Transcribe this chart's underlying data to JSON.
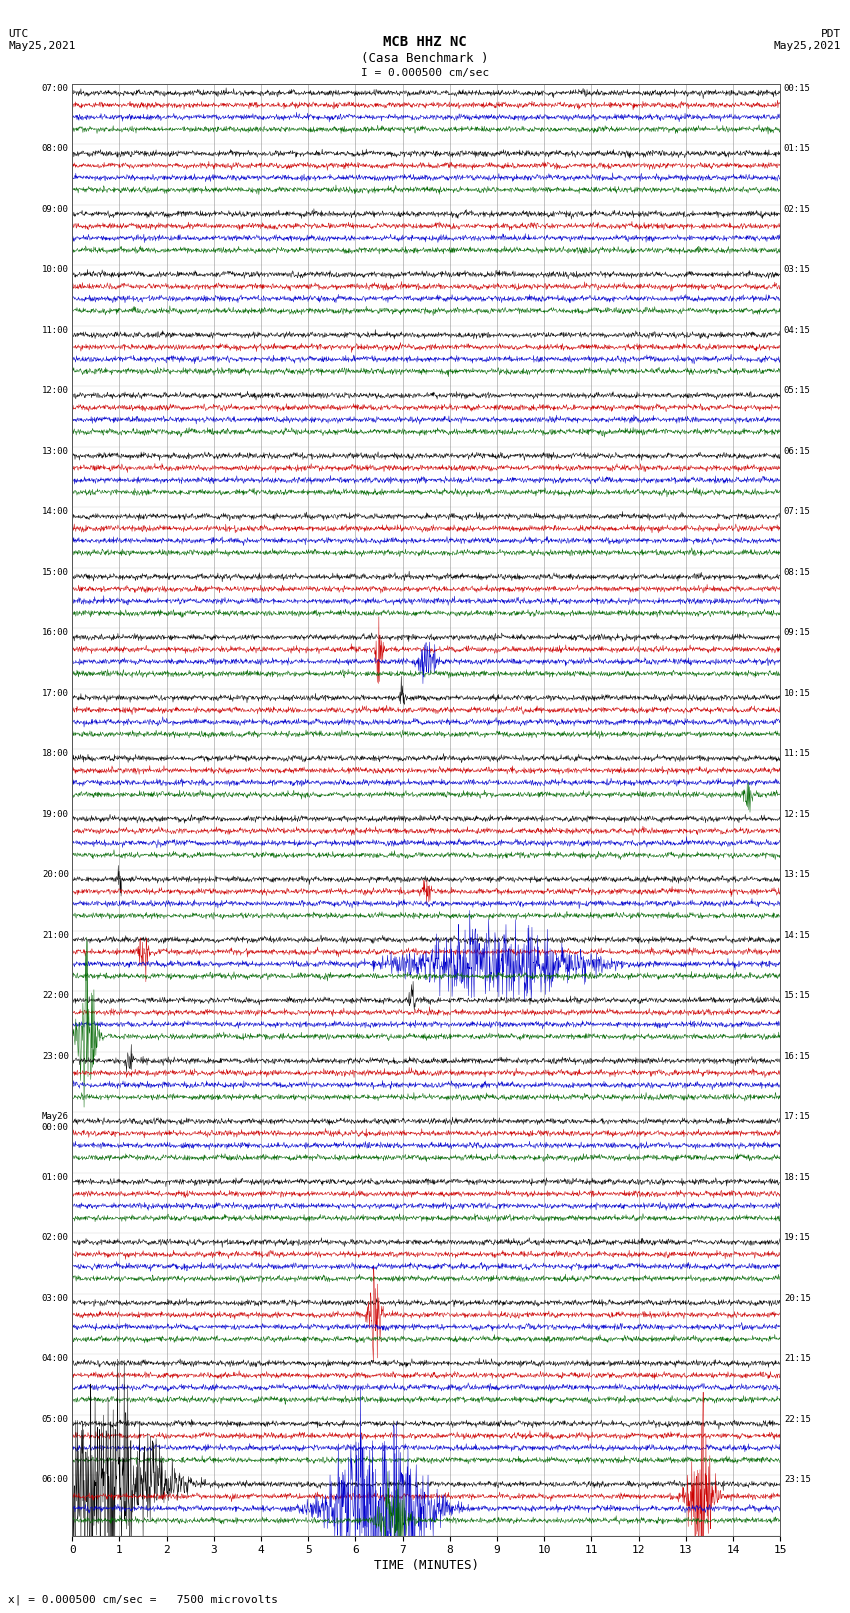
{
  "title_line1": "MCB HHZ NC",
  "title_line2": "(Casa Benchmark )",
  "scale_label": "I = 0.000500 cm/sec",
  "utc_label": "UTC\nMay25,2021",
  "pdt_label": "PDT\nMay25,2021",
  "bottom_label": "x| = 0.000500 cm/sec =   7500 microvolts",
  "xlabel": "TIME (MINUTES)",
  "left_times": [
    "07:00",
    "08:00",
    "09:00",
    "10:00",
    "11:00",
    "12:00",
    "13:00",
    "14:00",
    "15:00",
    "16:00",
    "17:00",
    "18:00",
    "19:00",
    "20:00",
    "21:00",
    "22:00",
    "23:00",
    "May26\n00:00",
    "01:00",
    "02:00",
    "03:00",
    "04:00",
    "05:00",
    "06:00"
  ],
  "right_times": [
    "00:15",
    "01:15",
    "02:15",
    "03:15",
    "04:15",
    "05:15",
    "06:15",
    "07:15",
    "08:15",
    "09:15",
    "10:15",
    "11:15",
    "12:15",
    "13:15",
    "14:15",
    "15:15",
    "16:15",
    "17:15",
    "18:15",
    "19:15",
    "20:15",
    "21:15",
    "22:15",
    "23:15"
  ],
  "n_rows": 24,
  "n_minutes": 15,
  "fig_width": 8.5,
  "fig_height": 16.13,
  "bg_color": "#ffffff",
  "trace_colors": [
    "#000000",
    "#cc0000",
    "#0000cc",
    "#006600"
  ],
  "grid_color": "#888888",
  "text_color": "#000000",
  "title_color": "#000000",
  "samples_per_row": 1800
}
